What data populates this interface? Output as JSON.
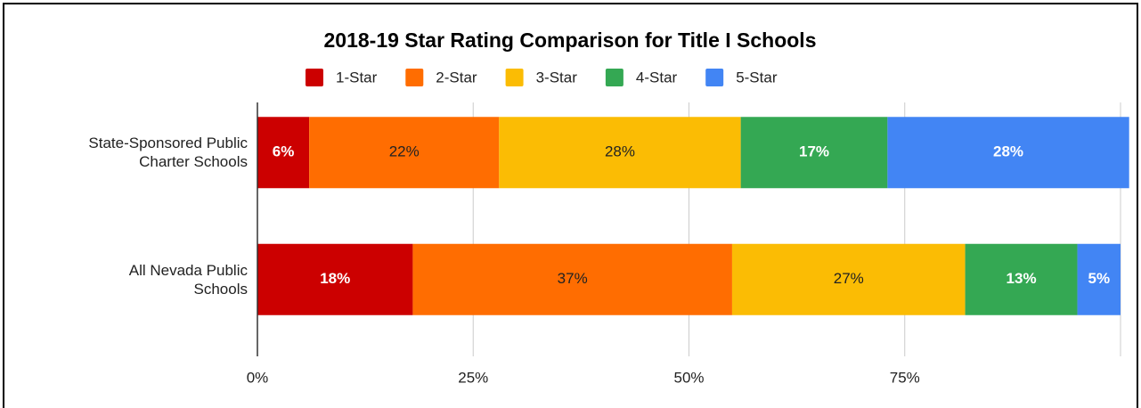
{
  "chart_data": {
    "type": "stacked-hbar",
    "title": "2018-19 Star Rating Comparison for Title I Schools",
    "categories": [
      "State-Sponsored Public\nCharter Schools",
      "All Nevada Public\nSchools"
    ],
    "series": [
      {
        "name": "1-Star",
        "color": "#cc0000",
        "values": [
          6,
          18
        ],
        "value_labels": [
          "6%",
          "18%"
        ]
      },
      {
        "name": "2-Star",
        "color": "#ff6d01",
        "values": [
          22,
          37
        ],
        "value_labels": [
          "22%",
          "37%"
        ]
      },
      {
        "name": "3-Star",
        "color": "#fbbc04",
        "values": [
          28,
          27
        ],
        "value_labels": [
          "28%",
          "27%"
        ]
      },
      {
        "name": "4-Star",
        "color": "#34a853",
        "values": [
          17,
          13
        ],
        "value_labels": [
          "17%",
          "13%"
        ]
      },
      {
        "name": "5-Star",
        "color": "#4285f4",
        "values": [
          28,
          5
        ],
        "value_labels": [
          "28%",
          "5%"
        ]
      }
    ],
    "xlim": [
      0,
      100
    ],
    "xticks": [
      {
        "value": 0,
        "label": "0%"
      },
      {
        "value": 25,
        "label": "25%"
      },
      {
        "value": 50,
        "label": "50%"
      },
      {
        "value": 75,
        "label": "75%"
      }
    ],
    "grid": true,
    "legend": "top"
  }
}
